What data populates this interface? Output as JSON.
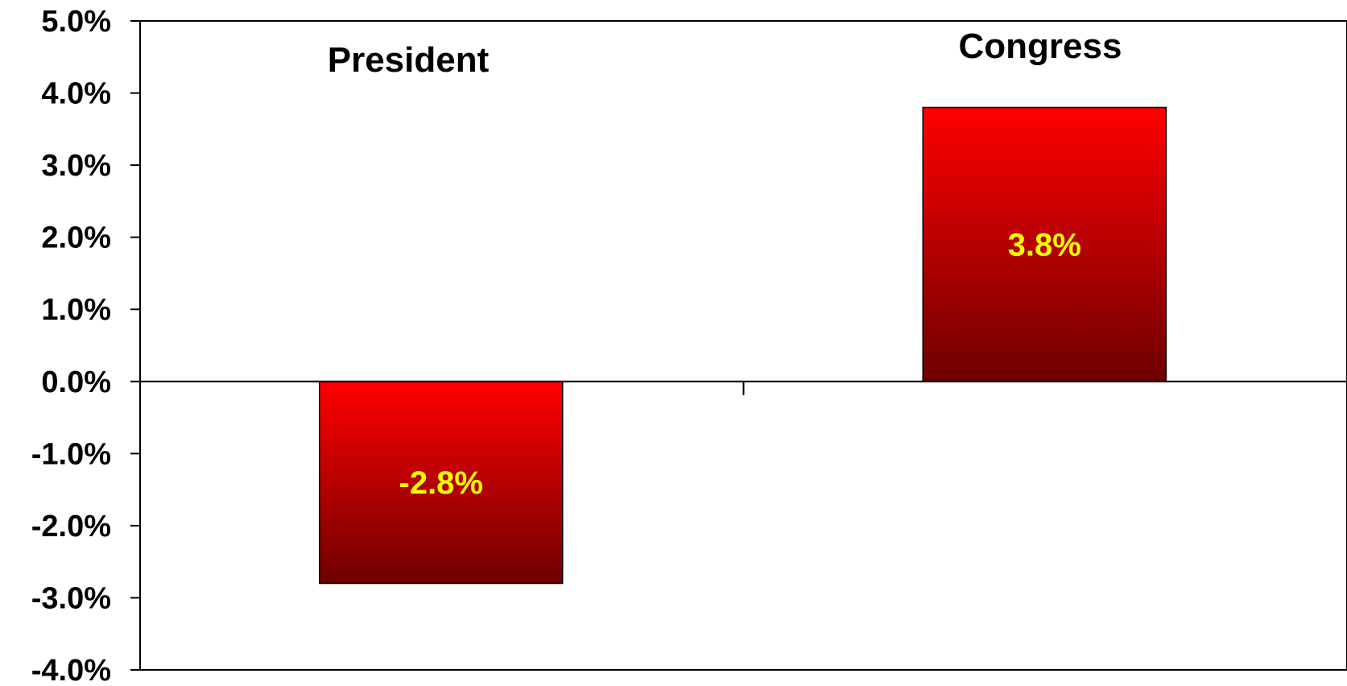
{
  "chart_data": {
    "type": "bar",
    "categories": [
      "President",
      "Congress"
    ],
    "values": [
      -2.8,
      3.8
    ],
    "value_labels": [
      "-2.8%",
      "3.8%"
    ],
    "title": "",
    "xlabel": "",
    "ylabel": "",
    "ylim": [
      -4.0,
      5.0
    ],
    "y_ticks": [
      5.0,
      4.0,
      3.0,
      2.0,
      1.0,
      0.0,
      -1.0,
      -2.0,
      -3.0,
      -4.0
    ],
    "y_tick_labels": [
      "5.0%",
      "4.0%",
      "3.0%",
      "2.0%",
      "1.0%",
      "0.0%",
      "-1.0%",
      "-2.0%",
      "-3.0%",
      "-4.0%"
    ],
    "category_label_position": "top",
    "grid": false,
    "legend": "none",
    "colors": {
      "bar_top": "#ff0000",
      "bar_bottom": "#6e0000",
      "data_label": "#ffff00",
      "axis": "#000000",
      "background": "#ffffff"
    }
  }
}
